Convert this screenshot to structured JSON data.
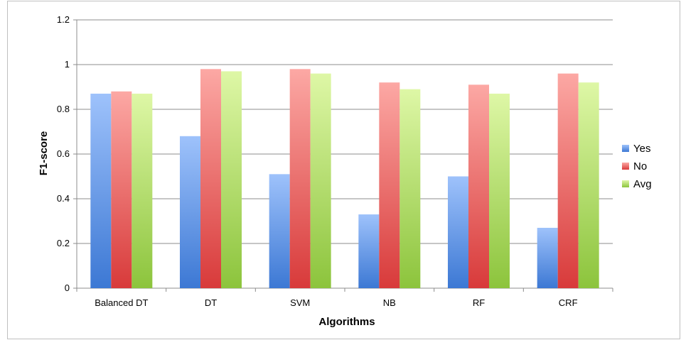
{
  "chart_data": {
    "type": "bar",
    "xlabel": "Algorithms",
    "ylabel": "F1-score",
    "ylim": [
      0,
      1.2
    ],
    "yticks": [
      "0",
      "0.2",
      "0.4",
      "0.6",
      "0.8",
      "1",
      "1.2"
    ],
    "grid": true,
    "legend_position": "right",
    "categories": [
      "Balanced DT",
      "DT",
      "SVM",
      "NB",
      "RF",
      "CRF"
    ],
    "series": [
      {
        "name": "Yes",
        "color": "#4a7fd6",
        "values": [
          0.87,
          0.68,
          0.51,
          0.33,
          0.5,
          0.27
        ]
      },
      {
        "name": "No",
        "color": "#e04848",
        "values": [
          0.88,
          0.98,
          0.98,
          0.92,
          0.91,
          0.96
        ]
      },
      {
        "name": "Avg",
        "color": "#98cc4a",
        "values": [
          0.87,
          0.97,
          0.96,
          0.89,
          0.87,
          0.92
        ]
      }
    ]
  }
}
